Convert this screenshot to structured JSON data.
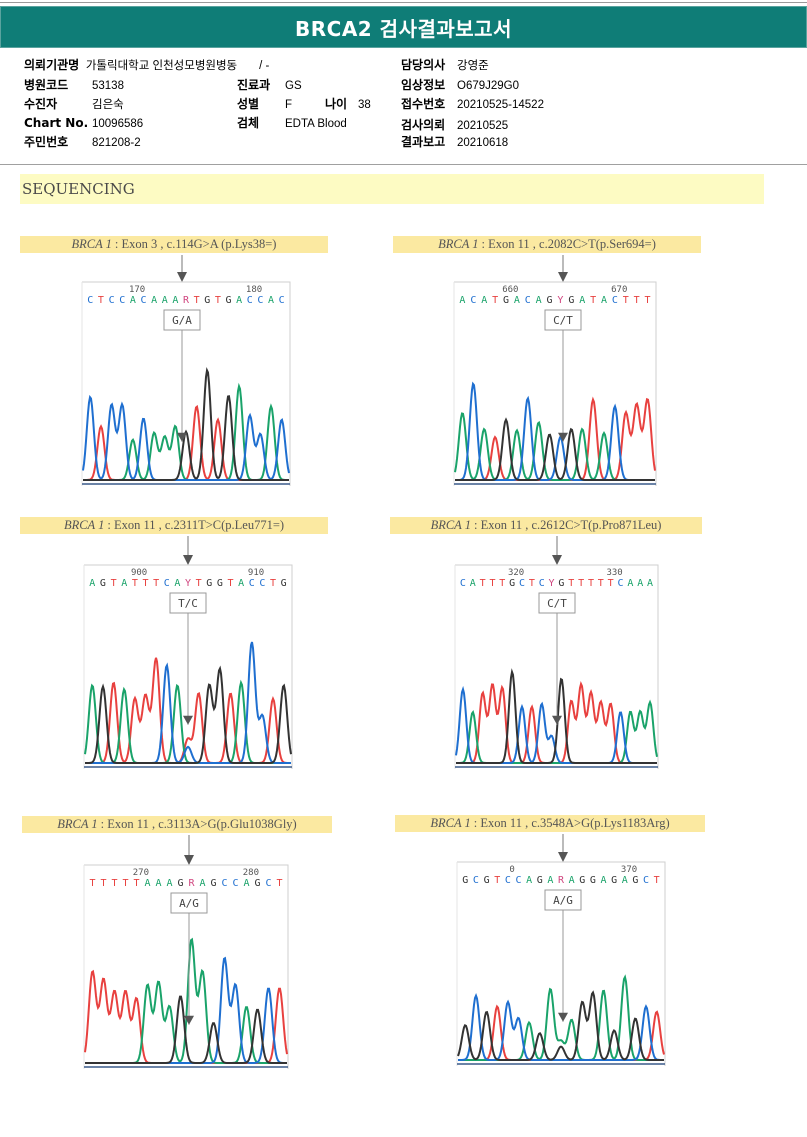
{
  "title": "BRCA2 검사결과보고서",
  "info": {
    "left": [
      {
        "label": "의뢰기관명",
        "value": "가톨릭대학교 인천성모병원병동",
        "extra": "/ -"
      },
      {
        "label": "병원코드",
        "value": "53138"
      },
      {
        "label": "수진자",
        "value": "김은숙"
      },
      {
        "label": "Chart No.",
        "value": "10096586"
      },
      {
        "label": "주민번호",
        "value": "821208-2"
      }
    ],
    "middle": [
      {
        "label": "진료과",
        "value": "GS"
      },
      {
        "label": "성별",
        "value": "F",
        "label2": "나이",
        "value2": "38"
      },
      {
        "label": "검체",
        "value": "EDTA Blood"
      }
    ],
    "right": [
      {
        "label": "담당의사",
        "value": "강영준"
      },
      {
        "label": "임상정보",
        "value": "O679J29G0"
      },
      {
        "label": "접수번호",
        "value": "20210525-14522"
      },
      {
        "label": "검사의뢰",
        "value": "20210525"
      },
      {
        "label": "결과보고",
        "value": "20210618"
      }
    ]
  },
  "section_title": "SEQUENCING",
  "base_colors": {
    "A": "#1aa36a",
    "C": "#1f6fd0",
    "G": "#333333",
    "T": "#e8413f",
    "R": "#d0457f",
    "Y": "#d0457f"
  },
  "panels": [
    {
      "gene": "BRCA 1",
      "variant": ": Exon 3 , c.114G>A (p.Lys38=)",
      "tick_labels": [
        "170",
        "180"
      ],
      "sequence": "CTCCACAAARTGTGACCAC",
      "call": "G/A",
      "peaks": {
        "heights": [
          0.62,
          0.4,
          0.56,
          0.56,
          0.3,
          0.46,
          0.35,
          0.32,
          0.4,
          0.22,
          0.55,
          0.82,
          0.45,
          0.63,
          0.7,
          0.48,
          0.34,
          0.55,
          0.45
        ],
        "secondary": {
          "9": {
            "base": "G",
            "h": 0.14
          }
        }
      }
    },
    {
      "gene": "BRCA 1",
      "variant": ": Exon 11 , c.2082C>T(p.Ser694=)",
      "tick_labels": [
        "660",
        "670"
      ],
      "sequence": "ACATGACAGYGATACTTT",
      "call": "C/T",
      "peaks": {
        "heights": [
          0.5,
          0.72,
          0.38,
          0.32,
          0.45,
          0.37,
          0.61,
          0.43,
          0.34,
          0.2,
          0.38,
          0.38,
          0.6,
          0.35,
          0.55,
          0.5,
          0.56,
          0.6
        ],
        "secondary": {
          "9": {
            "base": "C",
            "h": 0.12
          }
        }
      }
    },
    {
      "gene": "BRCA 1",
      "variant": ": Exon 11 , c.2311T>C(p.Leu771=)",
      "tick_labels": [
        "900",
        "910"
      ],
      "sequence": "AGTATTTCAYTGGTACCTG",
      "call": "T/C",
      "peaks": {
        "heights": [
          0.58,
          0.57,
          0.6,
          0.55,
          0.48,
          0.5,
          0.78,
          0.73,
          0.58,
          0.18,
          0.52,
          0.58,
          0.7,
          0.52,
          0.6,
          0.9,
          0.35,
          0.48,
          0.58
        ],
        "secondary": {
          "9": {
            "base": "C",
            "h": 0.12
          }
        }
      }
    },
    {
      "gene": "BRCA 1",
      "variant": ": Exon 11 , c.2612C>T(p.Pro871Leu)",
      "tick_labels": [
        "320",
        "330"
      ],
      "sequence": "CATTTGCTCYGTTTTTCAAA",
      "call": "C/T",
      "peaks": {
        "heights": [
          0.55,
          0.38,
          0.52,
          0.58,
          0.56,
          0.68,
          0.42,
          0.42,
          0.44,
          0.2,
          0.63,
          0.46,
          0.58,
          0.52,
          0.45,
          0.44,
          0.38,
          0.38,
          0.38,
          0.45
        ],
        "secondary": {}
      }
    },
    {
      "gene": "BRCA 1",
      "variant": ": Exon 11 , c.3113A>G(p.Glu1038Gly)",
      "tick_labels": [
        "270",
        "280"
      ],
      "sequence": "TTTTTAAAGRAGCCAGCT",
      "call": "A/G",
      "peaks": {
        "heights": [
          0.68,
          0.62,
          0.53,
          0.53,
          0.48,
          0.58,
          0.6,
          0.42,
          0.5,
          0.5,
          0.68,
          0.3,
          0.78,
          0.58,
          0.42,
          0.4,
          0.56,
          0.56
        ],
        "secondary": {
          "9": {
            "base": "A",
            "h": 0.42
          }
        }
      }
    },
    {
      "gene": "BRCA 1",
      "variant": ": Exon 11 , c.3548A>G(p.Lys1183Arg)",
      "tick_labels": [
        "0",
        "370"
      ],
      "sequence": "GCGTCCAGARAGGAGAGCT",
      "call": "A/G",
      "peaks": {
        "heights": [
          0.26,
          0.48,
          0.36,
          0.4,
          0.43,
          0.31,
          0.28,
          0.2,
          0.53,
          0.14,
          0.3,
          0.43,
          0.5,
          0.52,
          0.22,
          0.62,
          0.31,
          0.4,
          0.36
        ],
        "secondary": {
          "9": {
            "base": "G",
            "h": 0.1
          }
        }
      }
    }
  ]
}
